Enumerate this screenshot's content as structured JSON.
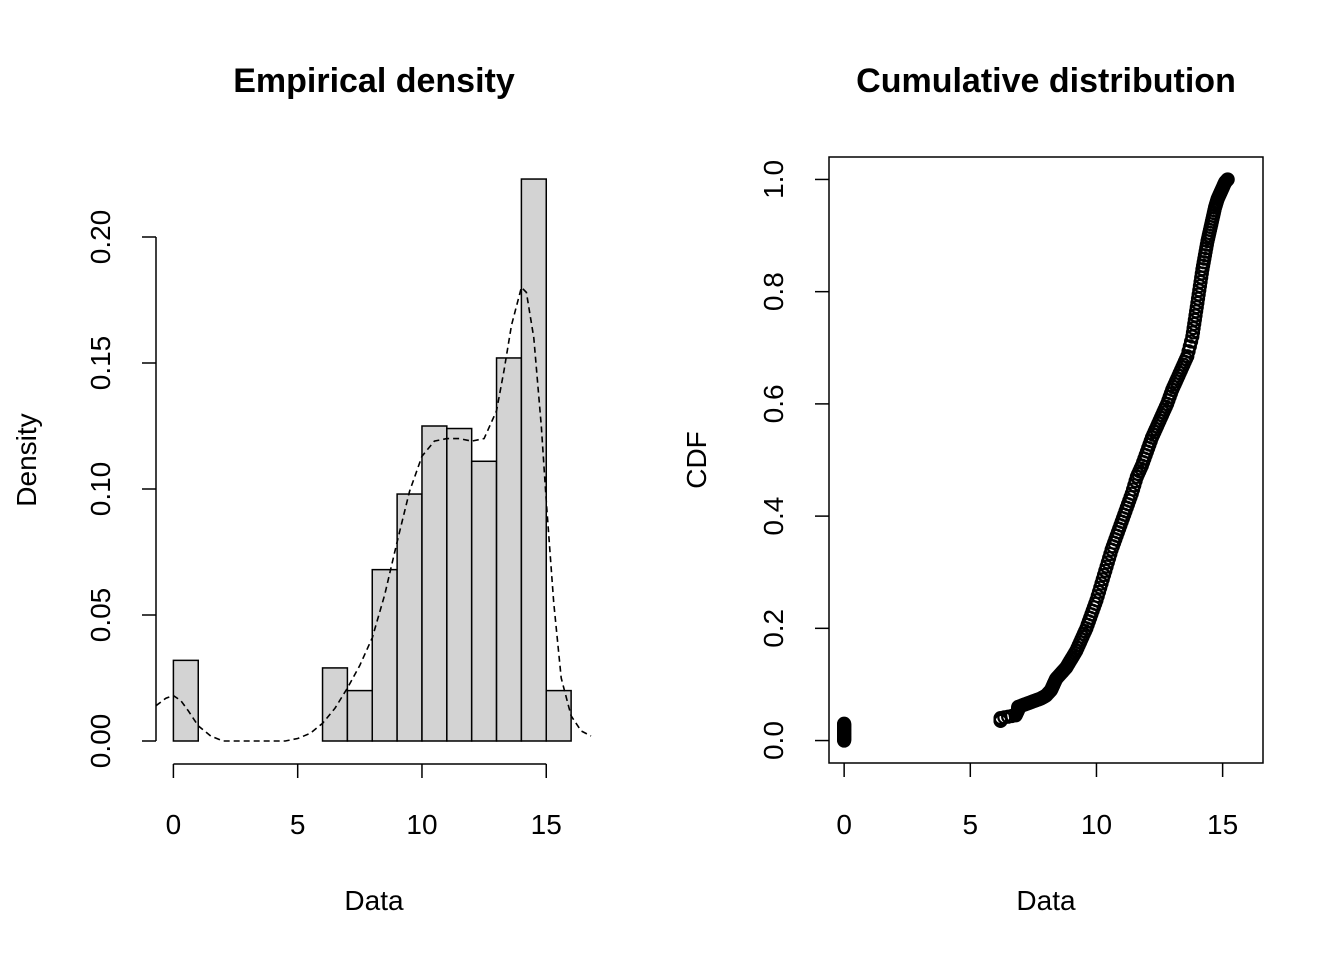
{
  "chart_data": [
    {
      "type": "bar",
      "title": "Empirical density",
      "xlabel": "Data",
      "ylabel": "Density",
      "xlim": [
        -0.7,
        16.8
      ],
      "ylim": [
        0,
        0.2
      ],
      "x_ticks": [
        0,
        5,
        10,
        15
      ],
      "x_tick_labels": [
        "0",
        "5",
        "10",
        "15"
      ],
      "y_ticks": [
        0,
        0.05,
        0.1,
        0.15,
        0.2
      ],
      "y_tick_labels": [
        "0.00",
        "0.05",
        "0.10",
        "0.15",
        "0.20"
      ],
      "bins": [
        {
          "x0": 0,
          "x1": 1,
          "density": 0.032
        },
        {
          "x0": 1,
          "x1": 2,
          "density": 0
        },
        {
          "x0": 2,
          "x1": 3,
          "density": 0
        },
        {
          "x0": 3,
          "x1": 4,
          "density": 0
        },
        {
          "x0": 4,
          "x1": 5,
          "density": 0
        },
        {
          "x0": 5,
          "x1": 6,
          "density": 0
        },
        {
          "x0": 6,
          "x1": 7,
          "density": 0.029
        },
        {
          "x0": 7,
          "x1": 8,
          "density": 0.02
        },
        {
          "x0": 8,
          "x1": 9,
          "density": 0.068
        },
        {
          "x0": 9,
          "x1": 10,
          "density": 0.098
        },
        {
          "x0": 10,
          "x1": 11,
          "density": 0.125
        },
        {
          "x0": 11,
          "x1": 12,
          "density": 0.124
        },
        {
          "x0": 12,
          "x1": 13,
          "density": 0.111
        },
        {
          "x0": 13,
          "x1": 14,
          "density": 0.152
        },
        {
          "x0": 14,
          "x1": 15,
          "density": 0.223
        },
        {
          "x0": 15,
          "x1": 16,
          "density": 0.02
        }
      ],
      "density_curve": {
        "style": "dashed",
        "x": [
          -0.7,
          -0.3,
          0,
          0.3,
          0.6,
          1.0,
          1.5,
          2.0,
          3.0,
          4.0,
          4.5,
          5.0,
          5.5,
          6.0,
          6.5,
          7.0,
          7.5,
          8.0,
          8.5,
          9.0,
          9.5,
          10.0,
          10.5,
          11.0,
          11.5,
          12.0,
          12.5,
          13.0,
          13.3,
          13.6,
          14.0,
          14.2,
          14.5,
          14.8,
          15.0,
          15.3,
          15.6,
          16.0,
          16.4,
          16.8
        ],
        "y": [
          0.014,
          0.017,
          0.018,
          0.016,
          0.012,
          0.006,
          0.002,
          0.0,
          0.0,
          0.0,
          0.0,
          0.001,
          0.003,
          0.007,
          0.013,
          0.021,
          0.03,
          0.041,
          0.058,
          0.079,
          0.099,
          0.113,
          0.119,
          0.12,
          0.12,
          0.119,
          0.12,
          0.131,
          0.147,
          0.165,
          0.18,
          0.178,
          0.16,
          0.125,
          0.095,
          0.055,
          0.025,
          0.01,
          0.004,
          0.002
        ]
      }
    },
    {
      "type": "scatter",
      "title": "Cumulative distribution",
      "xlabel": "Data",
      "ylabel": "CDF",
      "xlim": [
        -0.6,
        16.6
      ],
      "ylim": [
        -0.04,
        1.04
      ],
      "x_ticks": [
        0,
        5,
        10,
        15
      ],
      "x_tick_labels": [
        "0",
        "5",
        "10",
        "15"
      ],
      "y_ticks": [
        0,
        0.2,
        0.4,
        0.6,
        0.8,
        1.0
      ],
      "y_tick_labels": [
        "0.0",
        "0.2",
        "0.4",
        "0.6",
        "0.8",
        "1.0"
      ],
      "marker": "open-circle",
      "points": {
        "x": [
          0,
          0,
          0,
          0,
          0,
          0,
          0,
          6.2,
          6.2,
          6.8,
          6.9,
          6.9,
          7.2,
          7.5,
          7.8,
          8.0,
          8.2,
          8.3,
          8.4,
          8.6,
          8.8,
          9.0,
          9.2,
          9.4,
          9.6,
          9.8,
          10.0,
          10.2,
          10.4,
          10.6,
          10.8,
          11.0,
          11.2,
          11.4,
          11.6,
          11.8,
          12.0,
          12.2,
          12.4,
          12.6,
          12.8,
          13.0,
          13.2,
          13.4,
          13.6,
          13.8,
          13.9,
          14.0,
          14.1,
          14.2,
          14.3,
          14.4,
          14.5,
          14.6,
          14.7,
          14.8,
          14.9,
          15.0,
          15.1,
          15.2
        ],
        "y": [
          0.0,
          0.005,
          0.01,
          0.015,
          0.02,
          0.025,
          0.03,
          0.035,
          0.04,
          0.045,
          0.055,
          0.06,
          0.065,
          0.07,
          0.075,
          0.08,
          0.09,
          0.1,
          0.11,
          0.12,
          0.13,
          0.145,
          0.16,
          0.18,
          0.2,
          0.225,
          0.25,
          0.28,
          0.31,
          0.34,
          0.365,
          0.39,
          0.415,
          0.44,
          0.47,
          0.49,
          0.515,
          0.54,
          0.56,
          0.58,
          0.6,
          0.625,
          0.645,
          0.665,
          0.685,
          0.72,
          0.75,
          0.78,
          0.81,
          0.84,
          0.865,
          0.89,
          0.91,
          0.93,
          0.95,
          0.965,
          0.975,
          0.985,
          0.995,
          1.0
        ]
      }
    }
  ]
}
